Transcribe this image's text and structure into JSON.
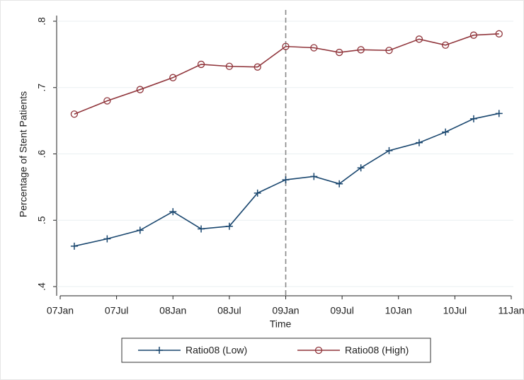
{
  "chart_data": {
    "type": "line",
    "x_label": "Time",
    "y_label": "Percentage of Stent Patients",
    "x": [
      1.5,
      5,
      8.5,
      12,
      15,
      18,
      21,
      24,
      27,
      29.7,
      32,
      35,
      38.2,
      41,
      44,
      46.7
    ],
    "series": [
      {
        "name": "Ratio08 (Low)",
        "color": "#1a476f",
        "marker": "plus",
        "values": [
          0.461,
          0.472,
          0.485,
          0.513,
          0.487,
          0.491,
          0.541,
          0.561,
          0.566,
          0.555,
          0.579,
          0.605,
          0.617,
          0.633,
          0.653,
          0.661
        ]
      },
      {
        "name": "Ratio08 (High)",
        "color": "#90353b",
        "marker": "circle",
        "values": [
          0.66,
          0.68,
          0.697,
          0.715,
          0.735,
          0.732,
          0.731,
          0.762,
          0.76,
          0.753,
          0.757,
          0.756,
          0.773,
          0.764,
          0.779,
          0.781
        ]
      }
    ],
    "xlim": [
      0,
      48
    ],
    "xticks": [
      {
        "value": 0,
        "label": "07Jan"
      },
      {
        "value": 6,
        "label": "07Jul"
      },
      {
        "value": 12,
        "label": "08Jan"
      },
      {
        "value": 18,
        "label": "08Jul"
      },
      {
        "value": 24,
        "label": "09Jan"
      },
      {
        "value": 30,
        "label": "09Jul"
      },
      {
        "value": 36,
        "label": "10Jan"
      },
      {
        "value": 42,
        "label": "10Jul"
      },
      {
        "value": 48,
        "label": "11Jan"
      }
    ],
    "ylim": [
      0.4,
      0.8
    ],
    "yticks": [
      {
        "value": 0.4,
        "label": ".4"
      },
      {
        "value": 0.5,
        "label": ".5"
      },
      {
        "value": 0.6,
        "label": ".6"
      },
      {
        "value": 0.7,
        "label": ".7"
      },
      {
        "value": 0.8,
        "label": ".8"
      }
    ],
    "vline": 24,
    "grid": true,
    "legend": "bottom"
  }
}
